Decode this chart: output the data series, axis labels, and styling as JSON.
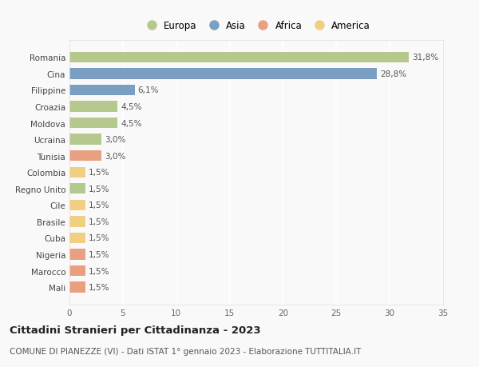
{
  "countries": [
    "Romania",
    "Cina",
    "Filippine",
    "Croazia",
    "Moldova",
    "Ucraina",
    "Tunisia",
    "Colombia",
    "Regno Unito",
    "Cile",
    "Brasile",
    "Cuba",
    "Nigeria",
    "Marocco",
    "Mali"
  ],
  "values": [
    31.8,
    28.8,
    6.1,
    4.5,
    4.5,
    3.0,
    3.0,
    1.5,
    1.5,
    1.5,
    1.5,
    1.5,
    1.5,
    1.5,
    1.5
  ],
  "labels": [
    "31,8%",
    "28,8%",
    "6,1%",
    "4,5%",
    "4,5%",
    "3,0%",
    "3,0%",
    "1,5%",
    "1,5%",
    "1,5%",
    "1,5%",
    "1,5%",
    "1,5%",
    "1,5%",
    "1,5%"
  ],
  "continents": [
    "Europa",
    "Asia",
    "Asia",
    "Europa",
    "Europa",
    "Europa",
    "Africa",
    "America",
    "Europa",
    "America",
    "America",
    "America",
    "Africa",
    "Africa",
    "Africa"
  ],
  "continent_colors": {
    "Europa": "#b5c98e",
    "Asia": "#7a9fc2",
    "Africa": "#e8a080",
    "America": "#f0d080"
  },
  "legend_order": [
    "Europa",
    "Asia",
    "Africa",
    "America"
  ],
  "legend_colors": [
    "#b5c98e",
    "#7a9fc2",
    "#e8a080",
    "#f0d080"
  ],
  "xlim": [
    0,
    35
  ],
  "xticks": [
    0,
    5,
    10,
    15,
    20,
    25,
    30,
    35
  ],
  "title": "Cittadini Stranieri per Cittadinanza - 2023",
  "subtitle": "COMUNE DI PIANEZZE (VI) - Dati ISTAT 1° gennaio 2023 - Elaborazione TUTTITALIA.IT",
  "background_color": "#f9f9f9",
  "grid_color": "#ffffff",
  "bar_height": 0.65,
  "label_fontsize": 7.5,
  "tick_fontsize": 7.5,
  "title_fontsize": 9.5,
  "subtitle_fontsize": 7.5
}
